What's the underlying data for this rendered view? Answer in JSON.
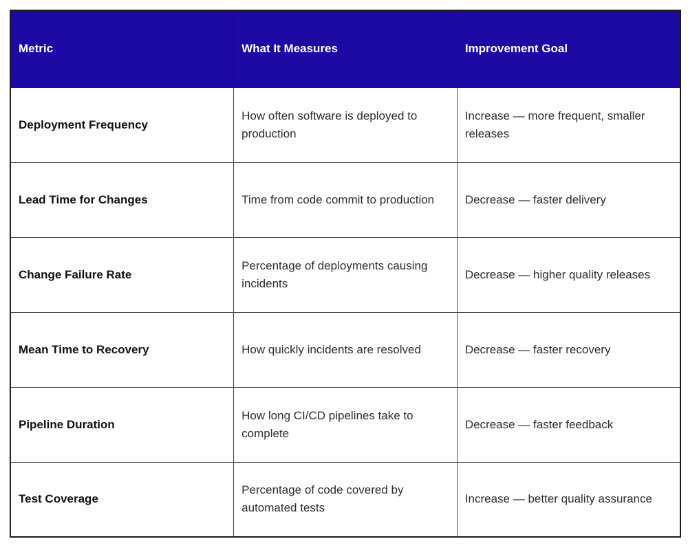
{
  "table": {
    "columns": [
      {
        "label": "Metric"
      },
      {
        "label": "What It Measures"
      },
      {
        "label": "Improvement Goal"
      }
    ],
    "rows": [
      {
        "metric": "Deployment Frequency",
        "measures": "How often software is deployed to production",
        "goal": "Increase — more frequent, smaller releases"
      },
      {
        "metric": "Lead Time for Changes",
        "measures": "Time from code commit to production",
        "goal": "Decrease — faster delivery"
      },
      {
        "metric": "Change Failure Rate",
        "measures": "Percentage of deployments causing incidents",
        "goal": "Decrease — higher quality releases"
      },
      {
        "metric": "Mean Time to Recovery",
        "measures": "How quickly incidents are resolved",
        "goal": "Decrease — faster recovery"
      },
      {
        "metric": "Pipeline Duration",
        "measures": "How long CI/CD pipelines take to complete",
        "goal": "Decrease — faster feedback"
      },
      {
        "metric": "Test Coverage",
        "measures": "Percentage of code covered by automated tests",
        "goal": "Increase — better quality assurance"
      }
    ],
    "colors": {
      "header_bg": "#1D0AA5",
      "header_text": "#FFFFFF",
      "body_text": "#2D2D2D",
      "metric_text": "#111111",
      "outer_border": "#1C1C1C",
      "inner_border": "#474747",
      "page_bg": "#FFFFFF"
    }
  }
}
